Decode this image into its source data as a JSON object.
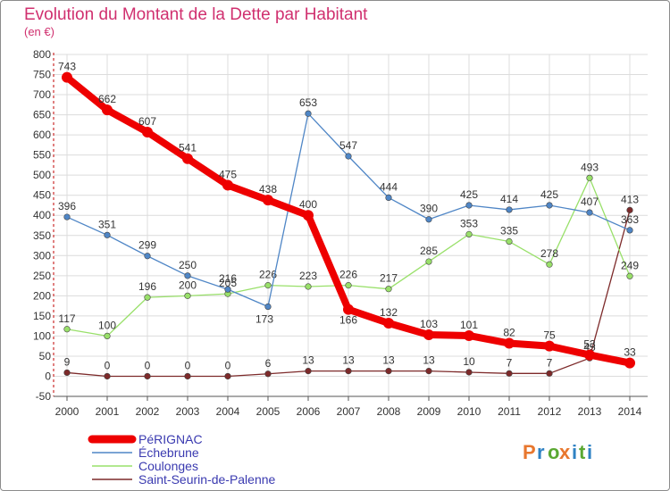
{
  "chart_data": {
    "type": "line",
    "title": "Evolution du Montant de la Dette par Habitant",
    "subtitle": "(en €)",
    "x": [
      "2000",
      "2001",
      "2002",
      "2003",
      "2004",
      "2005",
      "2006",
      "2007",
      "2008",
      "2009",
      "2010",
      "2011",
      "2012",
      "2013",
      "2014"
    ],
    "ylim": [
      -50,
      800
    ],
    "yticks": [
      -50,
      0,
      50,
      100,
      150,
      200,
      250,
      300,
      350,
      400,
      450,
      500,
      550,
      600,
      650,
      700,
      750,
      800
    ],
    "grid": true,
    "legend_position": "bottom-left",
    "series": [
      {
        "name": "PéRIGNAC",
        "color": "#ee0000",
        "values": [
          743,
          662,
          607,
          541,
          475,
          438,
          400,
          166,
          132,
          103,
          101,
          82,
          75,
          53,
          33
        ]
      },
      {
        "name": "Échebrune",
        "color": "#4f86c6",
        "values": [
          396,
          351,
          299,
          250,
          216,
          173,
          653,
          547,
          444,
          390,
          425,
          414,
          425,
          407,
          363
        ]
      },
      {
        "name": "Coulonges",
        "color": "#99e06a",
        "values": [
          117,
          100,
          196,
          200,
          205,
          226,
          223,
          226,
          217,
          285,
          353,
          335,
          278,
          493,
          249
        ]
      },
      {
        "name": "Saint-Seurin-de-Palenne",
        "color": "#7d2a2a",
        "values": [
          9,
          0,
          0,
          0,
          0,
          6,
          13,
          13,
          13,
          13,
          10,
          7,
          7,
          45,
          413
        ]
      }
    ]
  },
  "brand": {
    "name": "Proxiti",
    "letters": [
      "P",
      "r",
      "o",
      "x",
      "i",
      "t",
      "i"
    ]
  }
}
